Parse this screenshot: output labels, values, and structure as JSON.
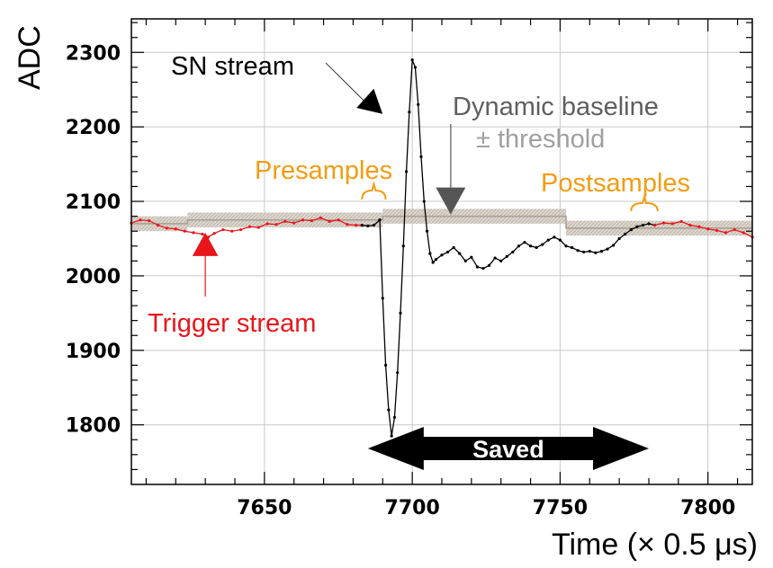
{
  "chart_data": {
    "type": "line",
    "xlabel": "Time (× 0.5 μs)",
    "ylabel": "ADC",
    "xlim": [
      7605,
      7815
    ],
    "ylim": [
      1720,
      2345
    ],
    "x_ticks": [
      7650,
      7700,
      7750,
      7800
    ],
    "y_ticks": [
      1800,
      1900,
      2000,
      2100,
      2200,
      2300
    ],
    "x_tick_labels": [
      "7650",
      "7700",
      "7750",
      "7800"
    ],
    "y_tick_labels": [
      "1800",
      "1900",
      "2000",
      "2100",
      "2200",
      "2300"
    ],
    "grid": true,
    "baseline": {
      "name": "Dynamic baseline",
      "color": "#a89e93",
      "threshold": 10,
      "segments": [
        {
          "x": [
            7605,
            7624
          ],
          "y": 2070
        },
        {
          "x": [
            7624,
            7690
          ],
          "y": 2075
        },
        {
          "x": [
            7690,
            7752
          ],
          "y": 2080
        },
        {
          "x": [
            7752,
            7815
          ],
          "y": 2064
        }
      ]
    },
    "series": [
      {
        "name": "Trigger stream",
        "color": "#e8161b",
        "x": [
          7605,
          7608,
          7611,
          7614,
          7617,
          7620,
          7623,
          7626,
          7629,
          7631,
          7633,
          7636,
          7639,
          7642,
          7645,
          7648,
          7651,
          7654,
          7657,
          7660,
          7663,
          7666,
          7669,
          7672,
          7675,
          7678,
          7681,
          7683
        ],
        "y": [
          2071,
          2075,
          2074,
          2068,
          2064,
          2063,
          2060,
          2058,
          2056,
          2052,
          2057,
          2062,
          2060,
          2062,
          2066,
          2065,
          2070,
          2069,
          2073,
          2071,
          2075,
          2074,
          2078,
          2073,
          2075,
          2069,
          2068,
          2068
        ]
      },
      {
        "name": "Presamples",
        "color": "#000000",
        "x": [
          7683,
          7685,
          7687,
          7689
        ],
        "y": [
          2068,
          2067,
          2068,
          2075
        ]
      },
      {
        "name": "SN stream",
        "color": "#000000",
        "x": [
          7689,
          7690,
          7691,
          7692,
          7693,
          7694,
          7695,
          7696,
          7697,
          7698,
          7699,
          7700,
          7701,
          7702,
          7703,
          7704,
          7705,
          7706,
          7707,
          7708,
          7710,
          7712,
          7714,
          7716,
          7718,
          7720,
          7722,
          7724,
          7726,
          7728,
          7730,
          7732,
          7734,
          7736,
          7738,
          7740,
          7742,
          7744,
          7746,
          7748,
          7750,
          7752,
          7754,
          7756,
          7758,
          7760,
          7762,
          7764,
          7766,
          7768,
          7770,
          7772,
          7774
        ],
        "y": [
          2075,
          1970,
          1880,
          1820,
          1785,
          1810,
          1870,
          1950,
          2040,
          2140,
          2220,
          2290,
          2280,
          2230,
          2160,
          2100,
          2060,
          2030,
          2018,
          2022,
          2028,
          2032,
          2038,
          2030,
          2020,
          2025,
          2012,
          2010,
          2014,
          2024,
          2020,
          2026,
          2032,
          2040,
          2045,
          2040,
          2038,
          2042,
          2048,
          2052,
          2048,
          2040,
          2038,
          2034,
          2032,
          2033,
          2031,
          2033,
          2036,
          2041,
          2050,
          2056,
          2062
        ]
      },
      {
        "name": "Postsamples",
        "color": "#000000",
        "x": [
          7774,
          7776,
          7778,
          7780,
          7782
        ],
        "y": [
          2062,
          2066,
          2068,
          2070,
          2068
        ]
      },
      {
        "name": "Trigger stream (after)",
        "color": "#e8161b",
        "x": [
          7782,
          7785,
          7788,
          7791,
          7794,
          7797,
          7800,
          7803,
          7806,
          7809,
          7812,
          7815
        ],
        "y": [
          2068,
          2071,
          2070,
          2073,
          2068,
          2066,
          2063,
          2061,
          2058,
          2062,
          2058,
          2052
        ]
      }
    ],
    "annotations": {
      "sn_stream": "SN stream",
      "dynamic_baseline": "Dynamic baseline",
      "threshold": "± threshold",
      "presamples": "Presamples",
      "postsamples": "Postsamples",
      "trigger_stream": "Trigger stream",
      "saved": "Saved"
    },
    "saved_range": [
      7685,
      7780
    ],
    "annotation_anchors": {
      "sn_stream_target": [
        7693,
        2215
      ],
      "baseline_arrow_target": [
        7713,
        2080
      ],
      "trigger_arrow_target": [
        7630,
        2070
      ],
      "presamples_brace": [
        7683,
        7691
      ],
      "postsamples_brace": [
        7774,
        7783
      ]
    }
  },
  "colors": {
    "trigger": "#e8161b",
    "presamples_label": "#f39c12",
    "baseline_label": "#5f5f5f",
    "threshold_label": "#a0a0a0",
    "band": "#cfc6bc"
  }
}
